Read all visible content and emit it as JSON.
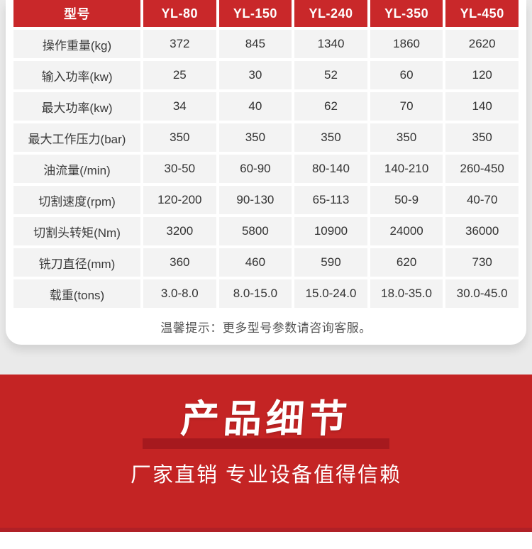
{
  "table": {
    "header": [
      "型号",
      "YL-80",
      "YL-150",
      "YL-240",
      "YL-350",
      "YL-450"
    ],
    "rows": [
      {
        "label": "操作重量(kg)",
        "values": [
          "372",
          "845",
          "1340",
          "1860",
          "2620"
        ]
      },
      {
        "label": "输入功率(kw)",
        "values": [
          "25",
          "30",
          "52",
          "60",
          "120"
        ]
      },
      {
        "label": "最大功率(kw)",
        "values": [
          "34",
          "40",
          "62",
          "70",
          "140"
        ]
      },
      {
        "label": "最大工作压力(bar)",
        "values": [
          "350",
          "350",
          "350",
          "350",
          "350"
        ]
      },
      {
        "label": "油流量(/min)",
        "values": [
          "30-50",
          "60-90",
          "80-140",
          "140-210",
          "260-450"
        ]
      },
      {
        "label": "切割速度(rpm)",
        "values": [
          "120-200",
          "90-130",
          "65-113",
          "50-9",
          "40-70"
        ]
      },
      {
        "label": "切割头转矩(Nm)",
        "values": [
          "3200",
          "5800",
          "10900",
          "24000",
          "36000"
        ]
      },
      {
        "label": "铣刀直径(mm)",
        "values": [
          "360",
          "460",
          "590",
          "620",
          "730"
        ]
      },
      {
        "label": "载重(tons)",
        "values": [
          "3.0-8.0",
          "8.0-15.0",
          "15.0-24.0",
          "18.0-35.0",
          "30.0-45.0"
        ]
      }
    ],
    "note": "温馨提示：更多型号参数请咨询客服。"
  },
  "banner": {
    "title": "产品细节",
    "subtitle": "厂家直销 专业设备值得信赖"
  },
  "colors": {
    "header_red": "#c9282a",
    "banner_red": "#c42424",
    "bar_dark_red": "#a6191e",
    "cell_gray": "#f3f3f3"
  }
}
